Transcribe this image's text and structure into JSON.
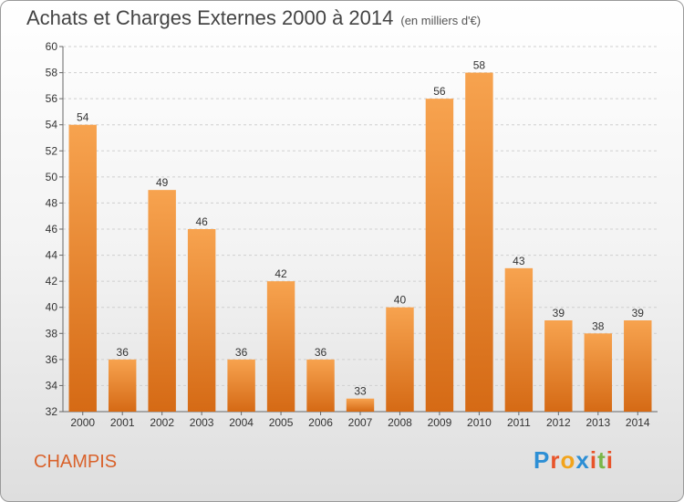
{
  "chart_data": {
    "type": "bar",
    "title": "Achats et Charges Externes 2000 à 2014",
    "unit": "(en milliers d'€)",
    "categories": [
      "2000",
      "2001",
      "2002",
      "2003",
      "2004",
      "2005",
      "2006",
      "2007",
      "2008",
      "2009",
      "2010",
      "2011",
      "2012",
      "2013",
      "2014"
    ],
    "values": [
      54,
      36,
      49,
      46,
      36,
      42,
      36,
      33,
      40,
      56,
      58,
      43,
      39,
      38,
      39
    ],
    "ylim": [
      32,
      60
    ],
    "yticks": [
      32,
      34,
      36,
      38,
      40,
      42,
      44,
      46,
      48,
      50,
      52,
      54,
      56,
      58,
      60
    ],
    "grid": true,
    "bar_color_top": "#f7a34f",
    "bar_color_bottom": "#d56a15"
  },
  "footer": {
    "commune": "CHAMPIS",
    "logo": [
      "P",
      "r",
      "o",
      "x",
      "i",
      "t",
      "i"
    ],
    "logo_colors": [
      "#2d8fd5",
      "#e8542a",
      "#f2a41c",
      "#2d8fd5",
      "#e8542a",
      "#7ab648",
      "#e8542a"
    ]
  }
}
